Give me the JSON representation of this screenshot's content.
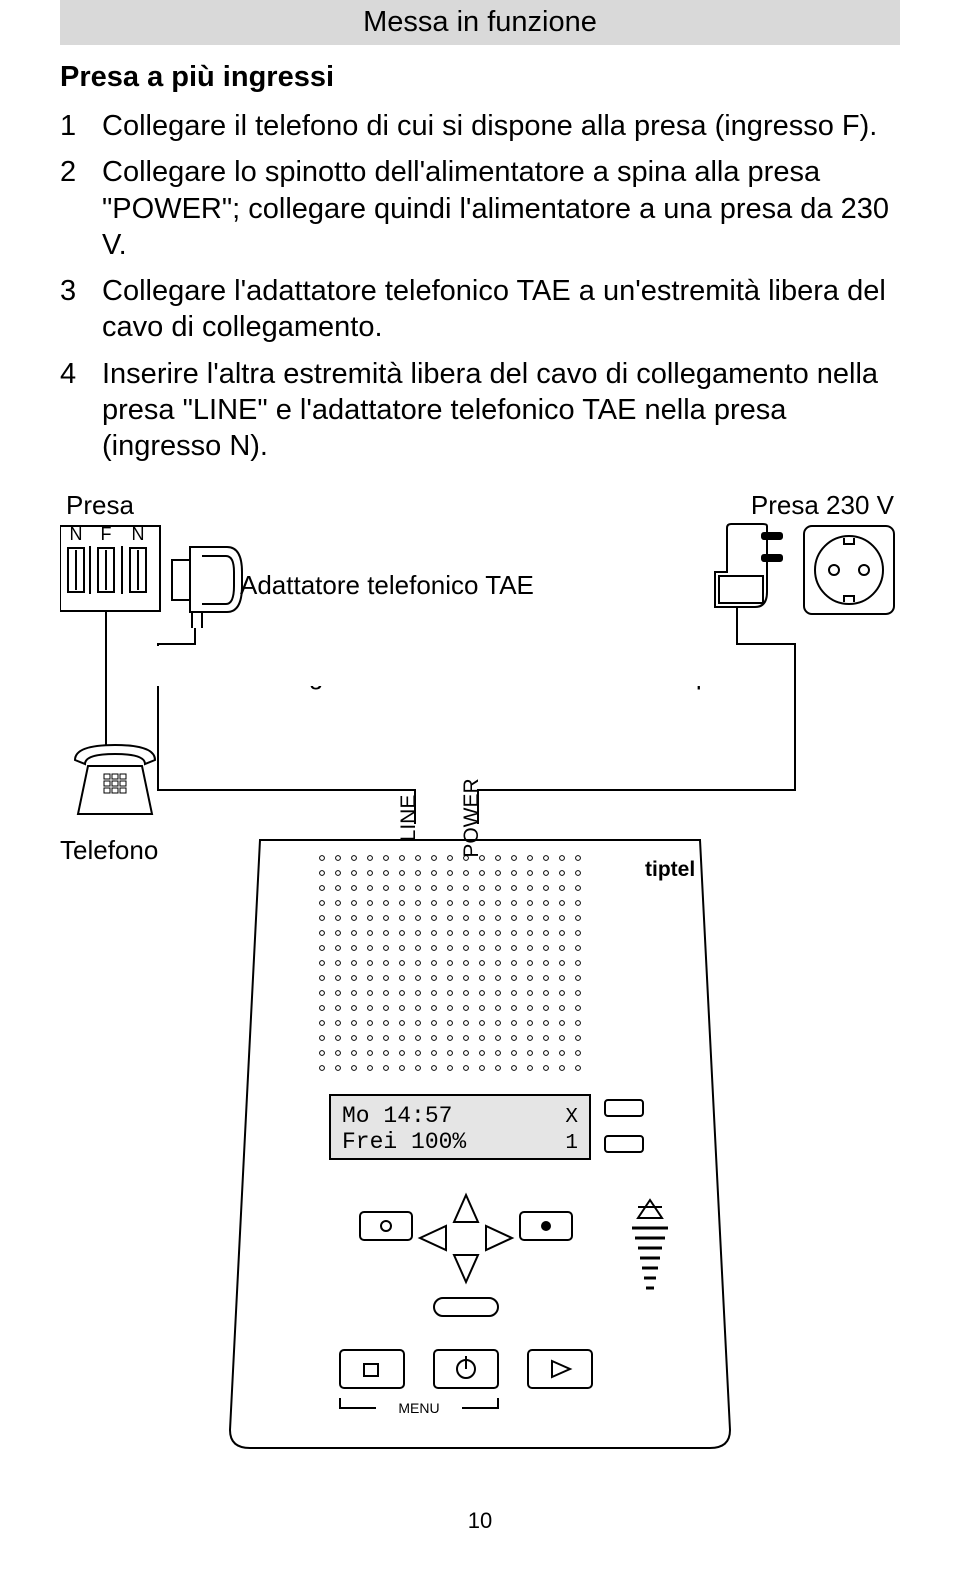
{
  "header": {
    "title": "Messa in funzione"
  },
  "section": {
    "title": "Presa a più ingressi"
  },
  "steps": [
    {
      "num": "1",
      "text": "Collegare il telefono di cui si dispone alla presa (ingresso F)."
    },
    {
      "num": "2",
      "text": "Collegare lo spinotto dell'alimentatore a spina alla presa \"POWER\"; collegare quindi l'alimentatore a una presa da 230 V."
    },
    {
      "num": "3",
      "text": "Collegare l'adattatore telefonico TAE a un'estremità libera del cavo di collegamento."
    },
    {
      "num": "4",
      "text": "Inserire l'altra estremità libera del cavo di collegamento nella presa \"LINE\" e l'adattatore telefonico TAE nella presa (ingresso N)."
    }
  ],
  "diagram": {
    "labels": {
      "presa": "Presa",
      "presa230": "Presa 230 V",
      "socket_letters": [
        "N",
        "F",
        "N"
      ],
      "adattatore": "Adattatore telefonico TAE",
      "cavo": "Cavo di collegamento",
      "alimentatore": "Alimentatore a spina",
      "telefono": "Telefono",
      "line": "LINE",
      "power": "POWER",
      "brand": "tiptel",
      "lcd_line1": "Mo 14:57",
      "lcd_line2": "Frei 100%",
      "lcd_right1": "X",
      "lcd_right2": "1",
      "menu": "MENU"
    },
    "colors": {
      "stroke": "#000000",
      "bg": "#ffffff",
      "lcd_bg": "#e5e5e5"
    }
  },
  "page_number": "10"
}
